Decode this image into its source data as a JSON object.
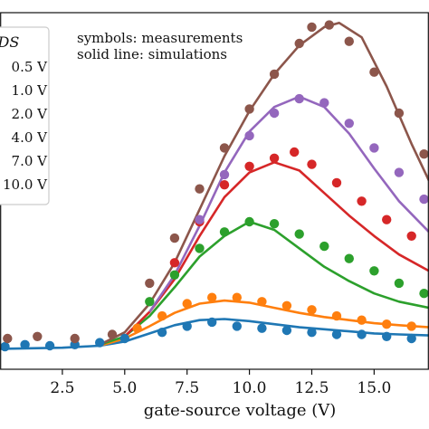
{
  "chart_data": {
    "type": "scatter",
    "xlabel": "gate-source voltage (V)",
    "ylabel": "",
    "xlim": [
      0.0,
      17.2
    ],
    "ylim": [
      -1.0,
      16.4
    ],
    "grid": false,
    "x_ticks": [
      "2.5",
      "5.0",
      "7.5",
      "10.0",
      "12.5",
      "15.0"
    ],
    "legend_title": "VDS",
    "legend_position": "top-left",
    "annotations": [
      "symbols: measurements",
      "solid line: simulations"
    ],
    "series": [
      {
        "name": "0.5 V",
        "color": "#1f77b4",
        "measured": [
          [
            0.2,
            0.1
          ],
          [
            1.0,
            0.2
          ],
          [
            2.0,
            0.15
          ],
          [
            3.0,
            0.2
          ],
          [
            4.0,
            0.3
          ],
          [
            5.0,
            0.5
          ],
          [
            6.5,
            0.8
          ],
          [
            7.5,
            1.1
          ],
          [
            8.5,
            1.3
          ],
          [
            9.5,
            1.1
          ],
          [
            10.5,
            1.0
          ],
          [
            11.5,
            0.9
          ],
          [
            12.5,
            0.8
          ],
          [
            13.5,
            0.7
          ],
          [
            14.5,
            0.7
          ],
          [
            15.5,
            0.6
          ],
          [
            16.5,
            0.5
          ]
        ],
        "simulated": [
          [
            0.0,
            0.0
          ],
          [
            2.5,
            0.05
          ],
          [
            4.0,
            0.15
          ],
          [
            5.0,
            0.35
          ],
          [
            6.0,
            0.75
          ],
          [
            7.0,
            1.15
          ],
          [
            8.0,
            1.4
          ],
          [
            9.0,
            1.45
          ],
          [
            10.0,
            1.35
          ],
          [
            11.0,
            1.2
          ],
          [
            12.0,
            1.05
          ],
          [
            13.0,
            0.95
          ],
          [
            14.0,
            0.85
          ],
          [
            15.0,
            0.75
          ],
          [
            16.0,
            0.7
          ],
          [
            17.2,
            0.65
          ]
        ]
      },
      {
        "name": "1.0 V",
        "color": "#ff7f0e",
        "measured": [
          [
            5.5,
            1.0
          ],
          [
            6.5,
            1.6
          ],
          [
            7.5,
            2.2
          ],
          [
            8.5,
            2.5
          ],
          [
            9.5,
            2.5
          ],
          [
            10.5,
            2.3
          ],
          [
            11.5,
            2.1
          ],
          [
            12.5,
            1.9
          ],
          [
            13.5,
            1.6
          ],
          [
            14.5,
            1.4
          ],
          [
            15.5,
            1.2
          ],
          [
            16.5,
            1.1
          ]
        ],
        "simulated": [
          [
            4.0,
            0.15
          ],
          [
            5.0,
            0.5
          ],
          [
            6.0,
            1.1
          ],
          [
            7.0,
            1.75
          ],
          [
            8.0,
            2.2
          ],
          [
            9.0,
            2.35
          ],
          [
            10.0,
            2.25
          ],
          [
            11.0,
            2.0
          ],
          [
            12.0,
            1.75
          ],
          [
            13.0,
            1.55
          ],
          [
            14.0,
            1.4
          ],
          [
            15.0,
            1.25
          ],
          [
            16.0,
            1.15
          ],
          [
            17.2,
            1.05
          ]
        ]
      },
      {
        "name": "2.0 V",
        "color": "#2ca02c",
        "measured": [
          [
            6.0,
            2.3
          ],
          [
            7.0,
            3.6
          ],
          [
            8.0,
            4.9
          ],
          [
            9.0,
            5.7
          ],
          [
            10.0,
            6.2
          ],
          [
            11.0,
            6.1
          ],
          [
            12.0,
            5.6
          ],
          [
            13.0,
            5.0
          ],
          [
            14.0,
            4.4
          ],
          [
            15.0,
            3.8
          ],
          [
            16.0,
            3.2
          ],
          [
            17.0,
            2.7
          ]
        ],
        "simulated": [
          [
            4.0,
            0.2
          ],
          [
            5.0,
            0.6
          ],
          [
            6.0,
            1.6
          ],
          [
            7.0,
            3.0
          ],
          [
            8.0,
            4.5
          ],
          [
            9.0,
            5.5
          ],
          [
            10.0,
            6.2
          ],
          [
            11.0,
            5.8
          ],
          [
            12.0,
            4.9
          ],
          [
            13.0,
            4.0
          ],
          [
            14.0,
            3.3
          ],
          [
            15.0,
            2.7
          ],
          [
            16.0,
            2.3
          ],
          [
            17.2,
            2.0
          ]
        ]
      },
      {
        "name": "4.0 V",
        "color": "#d62728",
        "measured": [
          [
            7.0,
            4.2
          ],
          [
            8.0,
            6.2
          ],
          [
            9.0,
            8.0
          ],
          [
            10.0,
            8.9
          ],
          [
            11.0,
            9.3
          ],
          [
            11.8,
            9.6
          ],
          [
            12.5,
            9.0
          ],
          [
            13.5,
            8.1
          ],
          [
            14.5,
            7.2
          ],
          [
            15.5,
            6.3
          ],
          [
            16.5,
            5.5
          ]
        ],
        "simulated": [
          [
            5.0,
            0.6
          ],
          [
            6.0,
            1.8
          ],
          [
            7.0,
            3.4
          ],
          [
            8.0,
            5.5
          ],
          [
            9.0,
            7.4
          ],
          [
            10.0,
            8.6
          ],
          [
            11.0,
            9.1
          ],
          [
            12.0,
            8.7
          ],
          [
            13.0,
            7.6
          ],
          [
            14.0,
            6.5
          ],
          [
            15.0,
            5.5
          ],
          [
            16.0,
            4.6
          ],
          [
            17.2,
            3.8
          ]
        ]
      },
      {
        "name": "7.0 V",
        "color": "#9467bd",
        "measured": [
          [
            8.0,
            6.3
          ],
          [
            9.0,
            8.5
          ],
          [
            10.0,
            10.4
          ],
          [
            11.0,
            11.5
          ],
          [
            12.0,
            12.2
          ],
          [
            13.0,
            12.0
          ],
          [
            14.0,
            11.0
          ],
          [
            15.0,
            9.8
          ],
          [
            16.0,
            8.6
          ],
          [
            17.0,
            7.3
          ]
        ],
        "simulated": [
          [
            6.0,
            1.8
          ],
          [
            7.0,
            3.6
          ],
          [
            8.0,
            6.0
          ],
          [
            9.0,
            8.6
          ],
          [
            10.0,
            10.6
          ],
          [
            11.0,
            11.8
          ],
          [
            12.0,
            12.3
          ],
          [
            13.0,
            11.8
          ],
          [
            14.0,
            10.5
          ],
          [
            15.0,
            8.8
          ],
          [
            16.0,
            7.2
          ],
          [
            17.2,
            5.7
          ]
        ]
      },
      {
        "name": "10.0 V",
        "color": "#8c564b",
        "measured": [
          [
            0.3,
            0.5
          ],
          [
            1.5,
            0.6
          ],
          [
            3.0,
            0.5
          ],
          [
            4.5,
            0.7
          ],
          [
            6.0,
            3.2
          ],
          [
            7.0,
            5.4
          ],
          [
            8.0,
            7.8
          ],
          [
            9.0,
            9.8
          ],
          [
            10.0,
            11.7
          ],
          [
            11.0,
            13.4
          ],
          [
            12.0,
            14.9
          ],
          [
            12.5,
            15.7
          ],
          [
            13.2,
            15.8
          ],
          [
            14.0,
            15.0
          ],
          [
            15.0,
            13.5
          ],
          [
            16.0,
            11.5
          ],
          [
            17.0,
            9.5
          ]
        ],
        "simulated": [
          [
            4.0,
            0.2
          ],
          [
            5.0,
            0.8
          ],
          [
            6.0,
            2.2
          ],
          [
            7.0,
            4.2
          ],
          [
            8.0,
            6.8
          ],
          [
            9.0,
            9.4
          ],
          [
            10.0,
            11.6
          ],
          [
            11.0,
            13.4
          ],
          [
            12.0,
            14.8
          ],
          [
            13.0,
            15.7
          ],
          [
            13.6,
            15.9
          ],
          [
            14.5,
            15.2
          ],
          [
            15.5,
            12.8
          ],
          [
            16.5,
            10.0
          ],
          [
            17.2,
            8.2
          ]
        ]
      }
    ]
  }
}
